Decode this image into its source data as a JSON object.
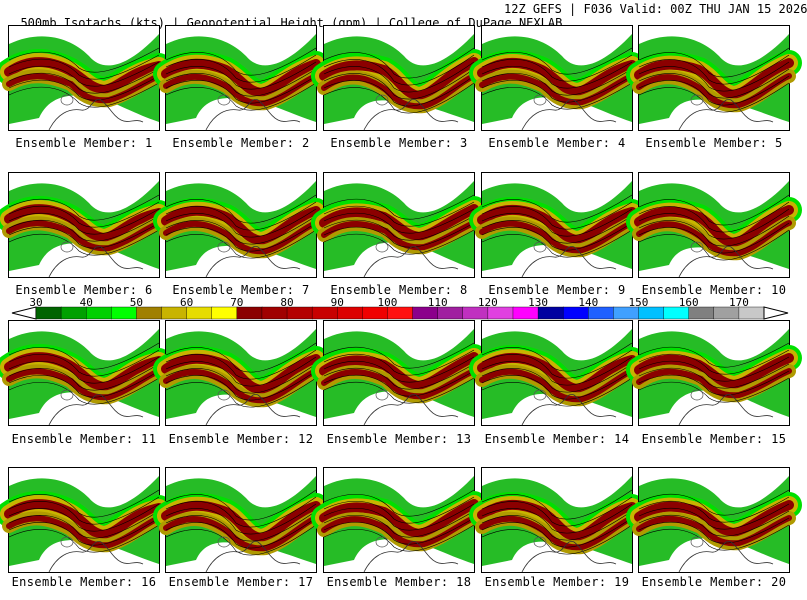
{
  "header": {
    "title": "500mb Isotachs (kts) | Geopotential Height (gpm) | College of DuPage NEXLAB",
    "run_info": "12Z GEFS | F036 Valid: 00Z THU JAN 15 2026"
  },
  "members": [
    "Ensemble Member: 1",
    "Ensemble Member: 2",
    "Ensemble Member: 3",
    "Ensemble Member: 4",
    "Ensemble Member: 5",
    "Ensemble Member: 6",
    "Ensemble Member: 7",
    "Ensemble Member: 8",
    "Ensemble Member: 9",
    "Ensemble Member: 10",
    "Ensemble Member: 11",
    "Ensemble Member: 12",
    "Ensemble Member: 13",
    "Ensemble Member: 14",
    "Ensemble Member: 15",
    "Ensemble Member: 16",
    "Ensemble Member: 17",
    "Ensemble Member: 18",
    "Ensemble Member: 19",
    "Ensemble Member: 20"
  ],
  "colorbar": {
    "labels": [
      "30",
      "40",
      "50",
      "60",
      "70",
      "80",
      "90",
      "100",
      "110",
      "120",
      "130",
      "140",
      "150",
      "160",
      "170"
    ],
    "colors": [
      "#006400",
      "#00a000",
      "#00d000",
      "#00ff00",
      "#a08000",
      "#c8b400",
      "#e6dc00",
      "#ffff00",
      "#8b0000",
      "#a00000",
      "#b40000",
      "#c80000",
      "#dc0000",
      "#f00000",
      "#ff1010",
      "#8b008b",
      "#a020a0",
      "#c030c0",
      "#e040e0",
      "#ff00ff",
      "#0000a0",
      "#0000ff",
      "#2060ff",
      "#40a0ff",
      "#00c0ff",
      "#00ffff",
      "#808080",
      "#a0a0a0",
      "#c8c8c8"
    ]
  },
  "legend_colors": {
    "green_dark": "#007a00",
    "green": "#00c000",
    "green_light": "#40ff40",
    "olive": "#b09a00",
    "yellow": "#e6d200",
    "maroon": "#8b0000"
  }
}
